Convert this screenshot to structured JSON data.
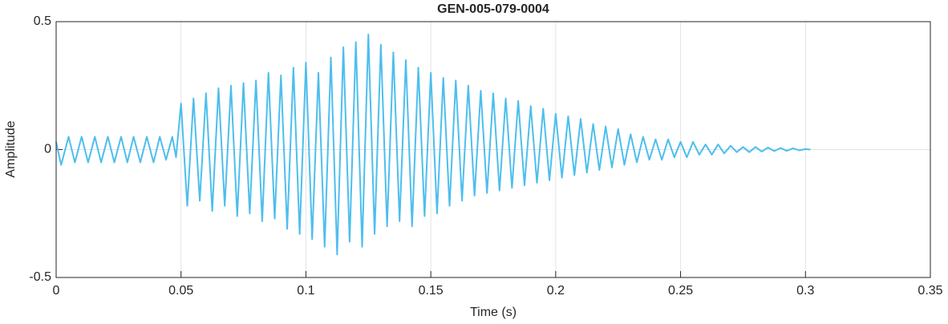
{
  "chart_data": {
    "type": "line",
    "title": "GEN-005-079-0004",
    "x_label": "Time (s)",
    "y_label": "Amplitude",
    "xlim": [
      0,
      0.35
    ],
    "xticks": [
      0,
      0.05,
      0.1,
      0.15,
      0.2,
      0.25,
      0.3,
      0.35
    ],
    "ylim": [
      -0.5,
      0.5
    ],
    "yticks": [
      -0.5,
      0,
      0.5
    ],
    "grid": true,
    "series": [
      {
        "name": "Amplitude",
        "color": "#4dbeee",
        "x": [
          0,
          0.002,
          0.005,
          0.0075,
          0.0102,
          0.0128,
          0.0155,
          0.018,
          0.0207,
          0.0233,
          0.026,
          0.0285,
          0.031,
          0.0337,
          0.0363,
          0.039,
          0.0415,
          0.044,
          0.0465,
          0.048,
          0.05,
          0.0525,
          0.055,
          0.0575,
          0.06,
          0.0625,
          0.065,
          0.0675,
          0.07,
          0.0725,
          0.075,
          0.0775,
          0.08,
          0.0825,
          0.085,
          0.0875,
          0.09,
          0.0925,
          0.095,
          0.0975,
          0.1,
          0.1025,
          0.105,
          0.1075,
          0.11,
          0.1125,
          0.115,
          0.1175,
          0.12,
          0.1225,
          0.125,
          0.1275,
          0.13,
          0.1325,
          0.135,
          0.1375,
          0.14,
          0.1425,
          0.145,
          0.1475,
          0.15,
          0.1525,
          0.155,
          0.1575,
          0.16,
          0.1625,
          0.165,
          0.1675,
          0.17,
          0.1725,
          0.175,
          0.1775,
          0.18,
          0.1825,
          0.185,
          0.1875,
          0.19,
          0.1925,
          0.195,
          0.1975,
          0.2,
          0.2025,
          0.205,
          0.2075,
          0.21,
          0.2125,
          0.215,
          0.2175,
          0.22,
          0.2225,
          0.225,
          0.2275,
          0.23,
          0.2325,
          0.235,
          0.2375,
          0.24,
          0.2425,
          0.245,
          0.2475,
          0.25,
          0.2525,
          0.255,
          0.2575,
          0.26,
          0.2625,
          0.265,
          0.2675,
          0.27,
          0.2725,
          0.275,
          0.2775,
          0.28,
          0.2825,
          0.285,
          0.2875,
          0.29,
          0.2925,
          0.295,
          0.2975,
          0.3,
          0.302
        ],
        "values": [
          0.03,
          -0.06,
          0.05,
          -0.05,
          0.05,
          -0.05,
          0.05,
          -0.05,
          0.05,
          -0.05,
          0.05,
          -0.05,
          0.05,
          -0.05,
          0.05,
          -0.05,
          0.05,
          -0.04,
          0.05,
          -0.03,
          0.18,
          -0.22,
          0.2,
          -0.2,
          0.22,
          -0.24,
          0.24,
          -0.22,
          0.25,
          -0.26,
          0.26,
          -0.25,
          0.27,
          -0.28,
          0.3,
          -0.27,
          0.29,
          -0.31,
          0.32,
          -0.33,
          0.34,
          -0.35,
          0.3,
          -0.38,
          0.36,
          -0.41,
          0.4,
          -0.36,
          0.42,
          -0.38,
          0.45,
          -0.33,
          0.41,
          -0.3,
          0.38,
          -0.28,
          0.35,
          -0.3,
          0.32,
          -0.26,
          0.3,
          -0.25,
          0.28,
          -0.22,
          0.27,
          -0.2,
          0.25,
          -0.18,
          0.23,
          -0.17,
          0.22,
          -0.16,
          0.2,
          -0.15,
          0.19,
          -0.14,
          0.17,
          -0.13,
          0.16,
          -0.12,
          0.14,
          -0.11,
          0.13,
          -0.1,
          0.12,
          -0.09,
          0.1,
          -0.08,
          0.09,
          -0.07,
          0.08,
          -0.06,
          0.06,
          -0.05,
          0.05,
          -0.04,
          0.04,
          -0.04,
          0.04,
          -0.03,
          0.03,
          -0.03,
          0.03,
          -0.02,
          0.02,
          -0.02,
          0.02,
          -0.015,
          0.015,
          -0.01,
          0.01,
          -0.01,
          0.01,
          -0.008,
          0.008,
          -0.006,
          0.006,
          -0.005,
          0.005,
          -0.003,
          0.002,
          0
        ]
      }
    ]
  }
}
